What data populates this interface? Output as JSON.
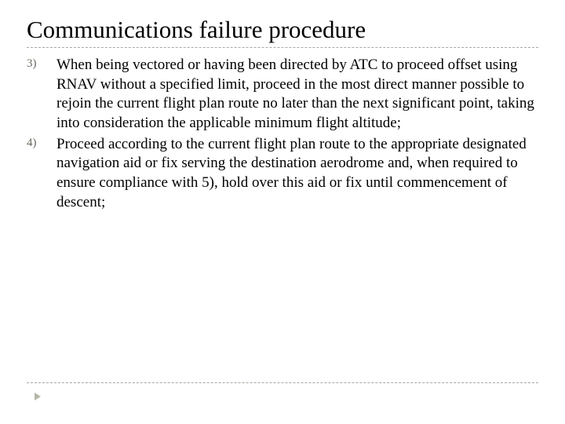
{
  "title": "Communications failure procedure",
  "items": [
    {
      "num": "3)",
      "text": "When being vectored or having been directed by ATC to proceed offset using RNAV without a specified limit, proceed in the most direct manner possible to rejoin the current flight plan route no later than the next significant point, taking into consideration the applicable minimum flight altitude;"
    },
    {
      "num": "4)",
      "text": "Proceed according to the current flight plan route to the appropriate designated navigation aid or fix serving the destination aerodrome and, when required to ensure compliance with 5), hold over this aid or fix until commencement of descent;"
    }
  ],
  "colors": {
    "text": "#000000",
    "num": "#6a6a60",
    "rule": "#a8a8a0",
    "marker": "#b7b7aa",
    "background": "#ffffff"
  },
  "typography": {
    "title_fontsize": 31,
    "body_fontsize": 19,
    "num_fontsize": 15,
    "font_family": "Georgia, Times New Roman, serif"
  }
}
